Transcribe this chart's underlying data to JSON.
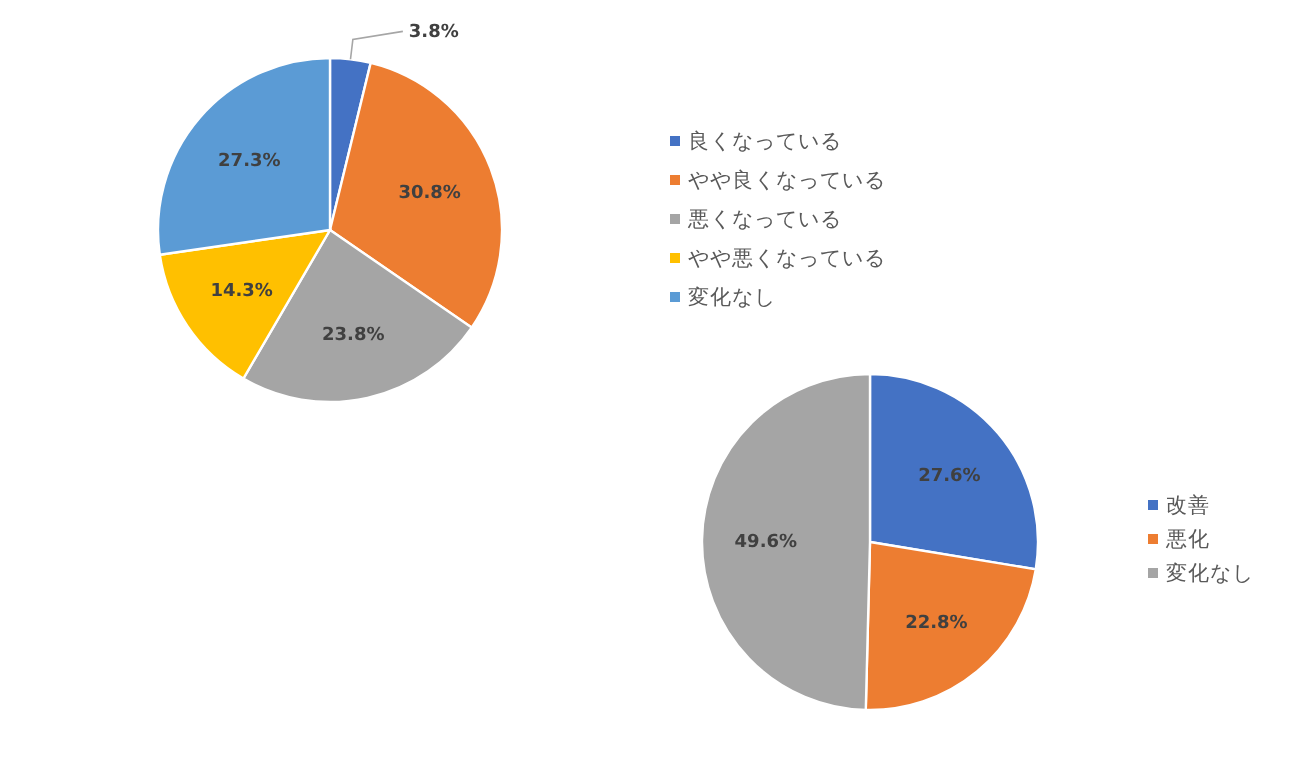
{
  "chart_data": [
    {
      "type": "pie",
      "categories": [
        "良くなっている",
        "やや良くなっている",
        "悪くなっている",
        "やや悪くなっている",
        "変化なし"
      ],
      "values": [
        3.8,
        30.8,
        23.8,
        14.3,
        27.3
      ],
      "value_labels": [
        "3.8%",
        "30.8%",
        "23.8%",
        "14.3%",
        "27.3%"
      ],
      "colors": [
        "#4472c4",
        "#ed7d31",
        "#a5a5a5",
        "#ffc000",
        "#5b9bd5"
      ],
      "legend": "right"
    },
    {
      "type": "pie",
      "categories": [
        "改善",
        "悪化",
        "変化なし"
      ],
      "values": [
        27.6,
        22.8,
        49.6
      ],
      "value_labels": [
        "27.6%",
        "22.8%",
        "49.6%"
      ],
      "colors": [
        "#4472c4",
        "#ed7d31",
        "#a5a5a5"
      ],
      "legend": "right"
    }
  ]
}
